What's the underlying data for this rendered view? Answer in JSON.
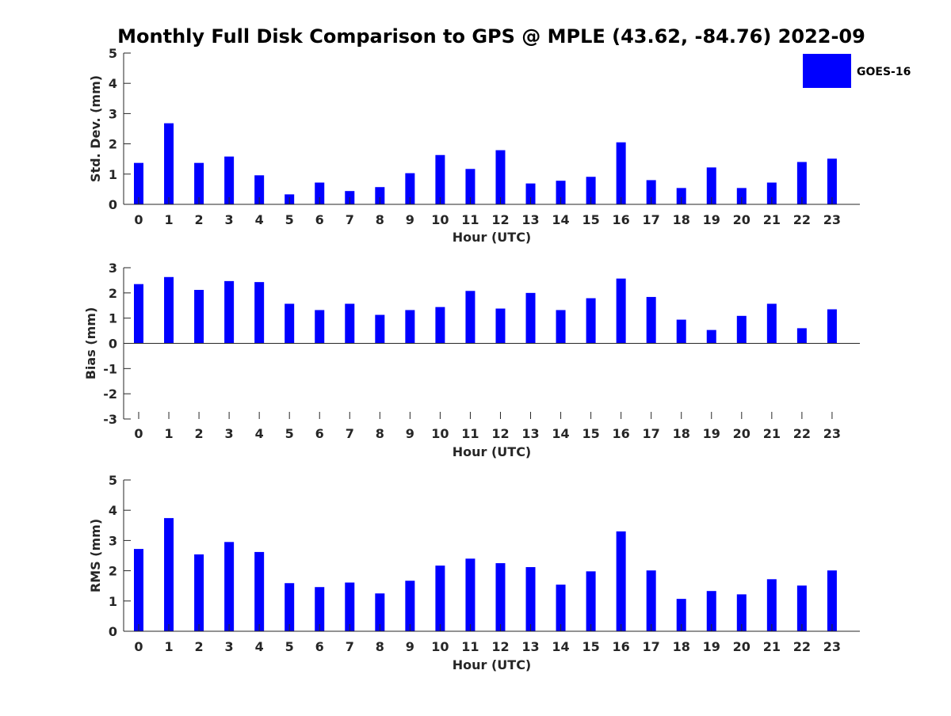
{
  "title": "Monthly Full Disk Comparison to GPS @ MPLE (43.62, -84.76) 2022-09",
  "legend": {
    "label": "GOES-16",
    "color": "#0000ff"
  },
  "chart_data": [
    {
      "type": "bar",
      "xlabel": "Hour (UTC)",
      "ylabel": "Std. Dev. (mm)",
      "ylim": [
        0,
        5
      ],
      "yticks": [
        "0",
        "1",
        "2",
        "3",
        "4",
        "5"
      ],
      "categories": [
        "0",
        "1",
        "2",
        "3",
        "4",
        "5",
        "6",
        "7",
        "8",
        "9",
        "10",
        "11",
        "12",
        "13",
        "14",
        "15",
        "16",
        "17",
        "18",
        "19",
        "20",
        "21",
        "22",
        "23"
      ],
      "series": [
        {
          "name": "GOES-16",
          "color": "#0000ff",
          "values": [
            1.37,
            2.68,
            1.37,
            1.58,
            0.96,
            0.33,
            0.72,
            0.44,
            0.57,
            1.03,
            1.63,
            1.17,
            1.79,
            0.69,
            0.78,
            0.91,
            2.05,
            0.8,
            0.54,
            1.22,
            0.54,
            0.72,
            1.4,
            1.51
          ]
        }
      ],
      "grid": false
    },
    {
      "type": "bar",
      "xlabel": "Hour (UTC)",
      "ylabel": "Bias (mm)",
      "ylim": [
        -3,
        3
      ],
      "yticks": [
        "-3",
        "-2",
        "-1",
        "0",
        "1",
        "2",
        "3"
      ],
      "categories": [
        "0",
        "1",
        "2",
        "3",
        "4",
        "5",
        "6",
        "7",
        "8",
        "9",
        "10",
        "11",
        "12",
        "13",
        "14",
        "15",
        "16",
        "17",
        "18",
        "19",
        "20",
        "21",
        "22",
        "23"
      ],
      "series": [
        {
          "name": "GOES-16",
          "color": "#0000ff",
          "values": [
            2.35,
            2.63,
            2.12,
            2.47,
            2.43,
            1.57,
            1.32,
            1.57,
            1.13,
            1.32,
            1.44,
            2.08,
            1.38,
            2.0,
            1.32,
            1.79,
            2.57,
            1.84,
            0.94,
            0.53,
            1.09,
            1.57,
            0.6,
            1.35
          ]
        }
      ],
      "grid": false
    },
    {
      "type": "bar",
      "xlabel": "Hour (UTC)",
      "ylabel": "RMS (mm)",
      "ylim": [
        0,
        5
      ],
      "yticks": [
        "0",
        "1",
        "2",
        "3",
        "4",
        "5"
      ],
      "categories": [
        "0",
        "1",
        "2",
        "3",
        "4",
        "5",
        "6",
        "7",
        "8",
        "9",
        "10",
        "11",
        "12",
        "13",
        "14",
        "15",
        "16",
        "17",
        "18",
        "19",
        "20",
        "21",
        "22",
        "23"
      ],
      "series": [
        {
          "name": "GOES-16",
          "color": "#0000ff",
          "values": [
            2.72,
            3.74,
            2.54,
            2.95,
            2.62,
            1.59,
            1.46,
            1.61,
            1.25,
            1.67,
            2.17,
            2.4,
            2.25,
            2.12,
            1.54,
            1.98,
            3.3,
            2.01,
            1.07,
            1.33,
            1.22,
            1.72,
            1.51,
            2.01
          ]
        }
      ],
      "grid": false
    }
  ]
}
